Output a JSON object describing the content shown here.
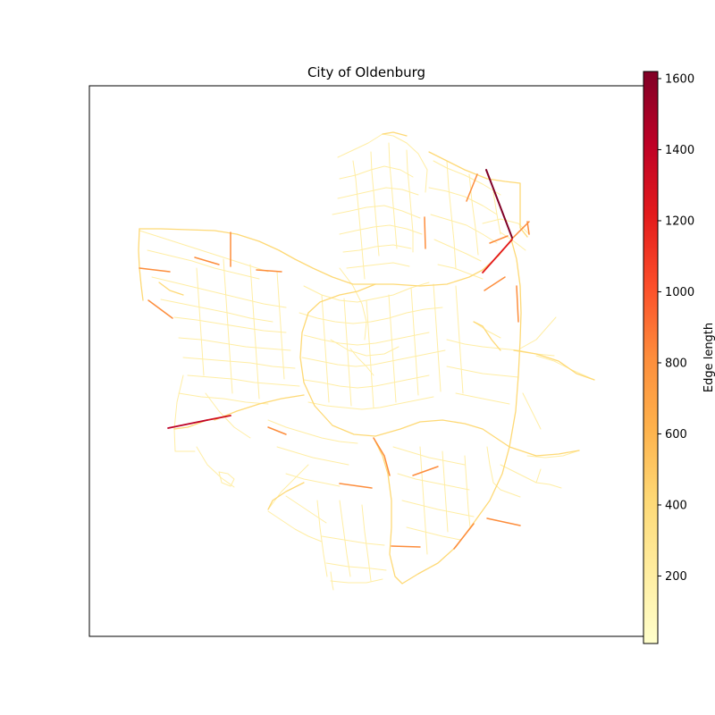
{
  "title": "City of Oldenburg",
  "colorbar": {
    "label": "Edge length",
    "min": 10,
    "max": 1620,
    "ticks": [
      200,
      400,
      600,
      800,
      1000,
      1200,
      1400,
      1600
    ],
    "colormap": "YlOrRd",
    "stops": [
      "#ffffcc",
      "#ffeda0",
      "#fed976",
      "#feb24c",
      "#fd8d3c",
      "#fc4e2a",
      "#e31a1c",
      "#bd0026",
      "#800026"
    ]
  },
  "map": {
    "street_color_base": "#ffeda0",
    "frame_color": "#000000",
    "background": "#ffffff"
  }
}
